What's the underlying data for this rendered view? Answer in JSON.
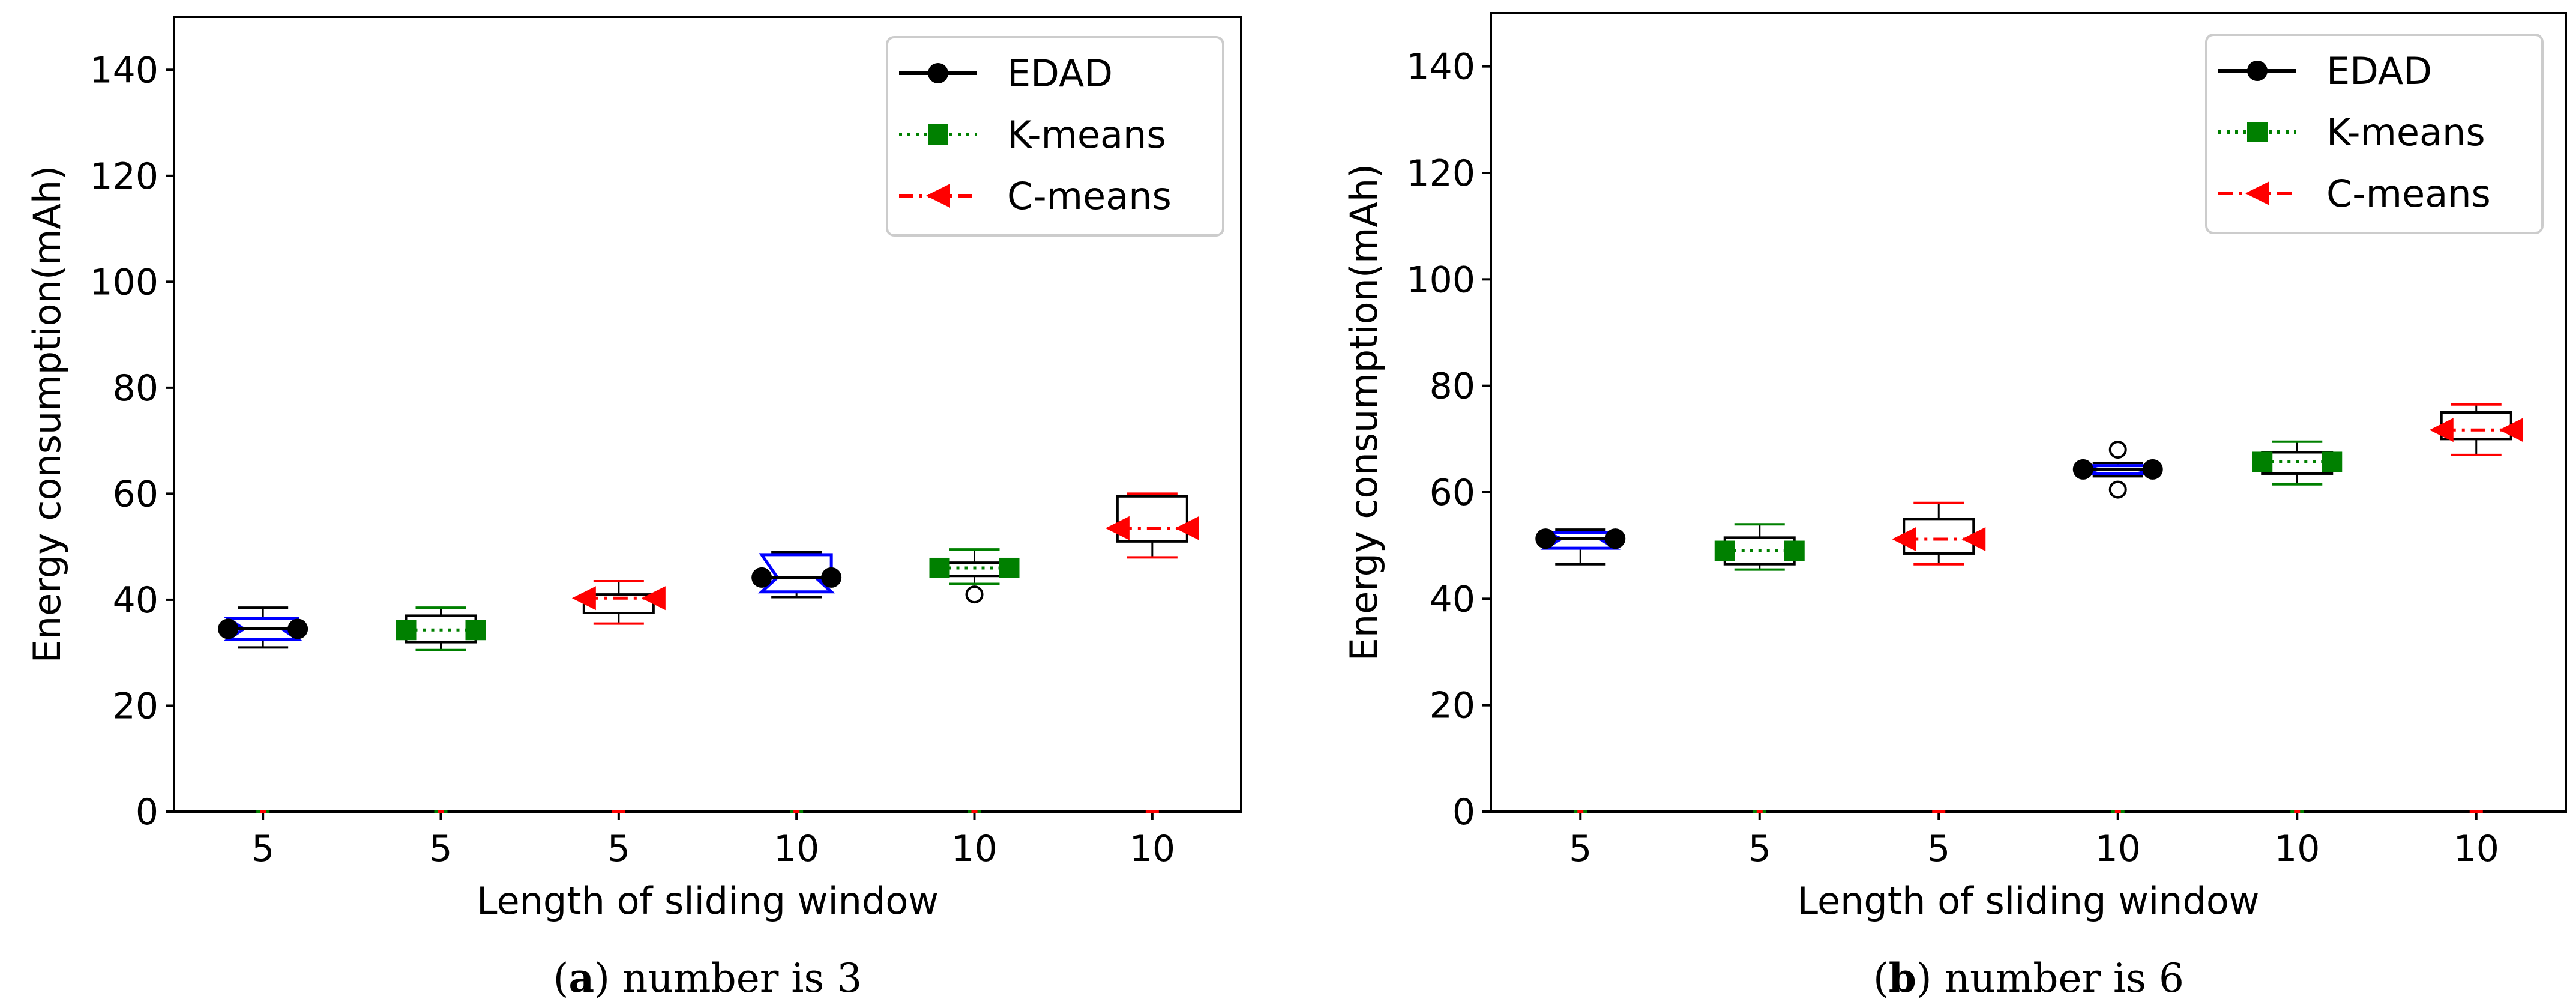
{
  "colors": {
    "edad": "#000000",
    "kmeans": "#008000",
    "cmeans": "#ff0000",
    "notch": "#0000ff",
    "median_yellow": "#ffd700"
  },
  "legend": [
    {
      "label": "EDAD",
      "style": "solid",
      "marker": "circle",
      "color": "#000000"
    },
    {
      "label": "K-means",
      "style": "dotted",
      "marker": "square",
      "color": "#008000"
    },
    {
      "label": "C-means",
      "style": "dashdot",
      "marker": "triangle-left",
      "color": "#ff0000"
    }
  ],
  "chart_data": [
    {
      "type": "box",
      "caption_letter": "a",
      "caption_text": ") number is 3",
      "caption_open": "(",
      "xlabel": "Length of sliding window",
      "ylabel": "Energy consumption(mAh)",
      "ylim": [
        0,
        150
      ],
      "yticks": [
        0,
        20,
        40,
        60,
        80,
        100,
        120,
        140
      ],
      "categories": [
        "5",
        "5",
        "5",
        "10",
        "10",
        "10"
      ],
      "boxes": [
        {
          "method": "EDAD",
          "whisker_low": 31,
          "q1": 32.5,
          "median": 34.5,
          "q3": 36.5,
          "whisker_high": 38.5,
          "notched": true,
          "outliers": []
        },
        {
          "method": "K-means",
          "whisker_low": 30.5,
          "q1": 32,
          "median": 34.3,
          "q3": 37,
          "whisker_high": 38.5,
          "notched": false,
          "outliers": []
        },
        {
          "method": "C-means",
          "whisker_low": 35.5,
          "q1": 37.5,
          "median": 40.3,
          "q3": 41,
          "whisker_high": 43.5,
          "notched": false,
          "outliers": []
        },
        {
          "method": "EDAD",
          "whisker_low": 40.5,
          "q1": 41.5,
          "median": 44.2,
          "q3": 48.5,
          "whisker_high": 49,
          "notched": true,
          "outliers": []
        },
        {
          "method": "K-means",
          "whisker_low": 43,
          "q1": 44.5,
          "median": 46,
          "q3": 47,
          "whisker_high": 49.5,
          "notched": false,
          "outliers": [
            41
          ]
        },
        {
          "method": "C-means",
          "whisker_low": 48,
          "q1": 51,
          "median": 53.5,
          "q3": 59.5,
          "whisker_high": 60,
          "notched": false,
          "outliers": []
        }
      ]
    },
    {
      "type": "box",
      "caption_letter": "b",
      "caption_text": ") number is 6",
      "caption_open": "(",
      "xlabel": "Length of sliding window",
      "ylabel": "Energy consumption(mAh)",
      "ylim": [
        0,
        150
      ],
      "yticks": [
        0,
        20,
        40,
        60,
        80,
        100,
        120,
        140
      ],
      "categories": [
        "5",
        "5",
        "5",
        "10",
        "10",
        "10"
      ],
      "boxes": [
        {
          "method": "EDAD",
          "whisker_low": 46.5,
          "q1": 49.5,
          "median": 51.3,
          "q3": 52.5,
          "whisker_high": 53,
          "notched": true,
          "outliers": []
        },
        {
          "method": "K-means",
          "whisker_low": 45.5,
          "q1": 46.5,
          "median": 49,
          "q3": 51.5,
          "whisker_high": 54,
          "notched": false,
          "outliers": []
        },
        {
          "method": "C-means",
          "whisker_low": 46.5,
          "q1": 48.5,
          "median": 51.2,
          "q3": 55,
          "whisker_high": 58,
          "notched": false,
          "outliers": []
        },
        {
          "method": "EDAD",
          "whisker_low": 63,
          "q1": 63.5,
          "median": 64.3,
          "q3": 65,
          "whisker_high": 65.5,
          "notched": true,
          "outliers": [
            60.5,
            68
          ]
        },
        {
          "method": "K-means",
          "whisker_low": 61.5,
          "q1": 63.5,
          "median": 65.7,
          "q3": 67.5,
          "whisker_high": 69.5,
          "notched": false,
          "outliers": []
        },
        {
          "method": "C-means",
          "whisker_low": 67,
          "q1": 70,
          "median": 71.7,
          "q3": 75,
          "whisker_high": 76.5,
          "notched": false,
          "outliers": []
        }
      ]
    }
  ]
}
